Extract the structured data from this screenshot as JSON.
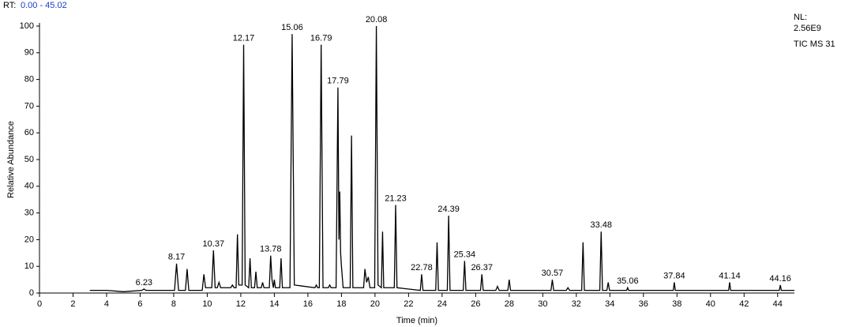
{
  "chart_data": {
    "type": "line",
    "rt_prefix": "RT:",
    "rt_range": "0.00 - 45.02",
    "nl_label": "NL:",
    "nl_value": "2.56E9",
    "scan_filter": "TIC  MS 31",
    "x_label": "Time (min)",
    "y_label": "Relative Abundance",
    "xlim": [
      0,
      45
    ],
    "xticks": [
      0,
      2,
      4,
      6,
      8,
      10,
      12,
      14,
      16,
      18,
      20,
      22,
      24,
      26,
      28,
      30,
      32,
      34,
      36,
      38,
      40,
      42,
      44
    ],
    "ylim": [
      0,
      100
    ],
    "yticks": [
      0,
      10,
      20,
      30,
      40,
      50,
      60,
      70,
      80,
      90,
      100
    ],
    "color": "#000000",
    "x": [
      3.0,
      4,
      5,
      6.1,
      6.23,
      6.35,
      8.05,
      8.17,
      8.29,
      8.7,
      8.8,
      8.9,
      9.7,
      9.8,
      9.9,
      10.27,
      10.37,
      10.47,
      10.6,
      10.7,
      10.8,
      11.4,
      11.5,
      11.6,
      11.72,
      11.8,
      11.88,
      12.08,
      12.17,
      12.26,
      12.47,
      12.55,
      12.63,
      12.82,
      12.9,
      12.98,
      13.22,
      13.3,
      13.38,
      13.7,
      13.78,
      13.86,
      13.94,
      14.0,
      14.06,
      14.32,
      14.4,
      14.48,
      14.93,
      15.06,
      15.19,
      16.42,
      16.5,
      16.58,
      16.68,
      16.79,
      16.9,
      17.22,
      17.3,
      17.38,
      17.68,
      17.79,
      17.85,
      17.9,
      17.95,
      18.0,
      18.1,
      18.52,
      18.6,
      18.68,
      19.32,
      19.4,
      19.5,
      19.6,
      19.7,
      19.98,
      20.08,
      20.18,
      20.38,
      20.45,
      20.52,
      21.15,
      21.23,
      21.31,
      22.7,
      22.78,
      22.86,
      23.62,
      23.7,
      23.78,
      24.31,
      24.39,
      24.47,
      25.26,
      25.34,
      25.42,
      26.29,
      26.37,
      26.45,
      27.2,
      27.3,
      27.4,
      27.92,
      28.0,
      28.08,
      30.49,
      30.57,
      30.65,
      31.4,
      31.5,
      31.6,
      32.32,
      32.4,
      32.48,
      33.4,
      33.48,
      33.56,
      33.82,
      33.9,
      33.98,
      35.0,
      35.06,
      35.12,
      37.78,
      37.84,
      37.9,
      41.08,
      41.14,
      41.2,
      44.1,
      44.16,
      44.22,
      45.0
    ],
    "values": [
      1,
      1,
      0.5,
      1,
      1.5,
      1,
      1,
      11,
      1,
      1,
      9,
      1,
      1,
      7,
      2,
      2,
      16,
      2,
      2,
      4,
      2,
      2,
      3,
      2,
      2,
      22,
      3,
      3,
      93,
      3,
      2,
      13,
      2,
      2,
      8,
      2,
      2,
      4,
      2,
      2,
      14,
      5,
      2,
      5,
      2,
      2,
      13,
      2,
      2,
      97,
      3,
      2,
      3,
      2,
      2,
      93,
      2,
      2,
      3,
      2,
      2,
      77,
      20,
      38,
      15,
      10,
      2,
      2,
      59,
      2,
      2,
      9,
      4,
      6,
      2,
      2,
      100,
      3,
      2,
      23,
      2,
      2,
      33,
      2,
      1,
      7,
      1,
      1,
      19,
      1,
      1,
      29,
      1,
      1,
      12,
      1,
      1,
      7,
      1,
      1,
      2.5,
      1,
      1,
      5,
      1,
      1,
      5,
      1,
      1,
      2,
      1,
      1,
      19,
      1,
      1,
      23,
      1,
      1,
      4,
      1,
      1,
      2,
      1,
      1,
      4,
      1,
      1,
      4,
      1,
      1,
      3,
      1,
      1
    ],
    "peak_labels": [
      6.23,
      8.17,
      10.37,
      12.17,
      13.78,
      15.06,
      16.79,
      17.79,
      20.08,
      21.23,
      22.78,
      24.39,
      25.34,
      26.37,
      30.57,
      33.48,
      35.06,
      37.84,
      41.14,
      44.16
    ]
  }
}
